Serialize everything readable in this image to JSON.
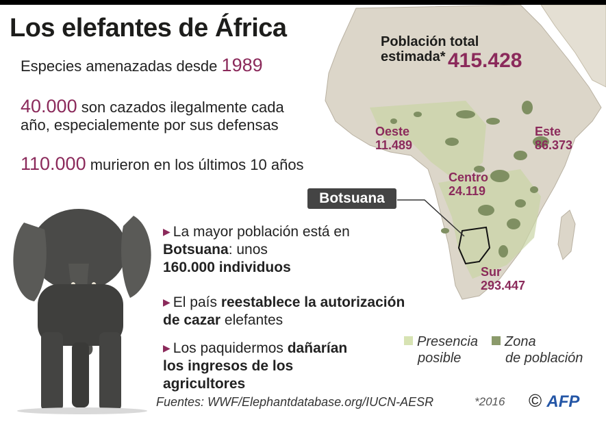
{
  "title": "Los elefantes de África",
  "stats": {
    "line1_text": "Especies amenazadas desde",
    "line1_value": "1989",
    "line2_value": "40.000",
    "line2_text_a": "son cazados ilegalmente cada",
    "line2_text_b": "año, especialemente por sus defensas",
    "line3_value": "110.000",
    "line3_text": "murieron en los últimos 10 años"
  },
  "map": {
    "total_label_a": "Población total",
    "total_label_b": "estimada*",
    "total_value": "415.428",
    "regions": [
      {
        "name": "Oeste",
        "value": "11.489"
      },
      {
        "name": "Este",
        "value": "86.373"
      },
      {
        "name": "Centro",
        "value": "24.119"
      },
      {
        "name": "Sur",
        "value": "293.447"
      }
    ],
    "callout": "Botsuana"
  },
  "bullets": [
    {
      "a": "La mayor población está en",
      "b_bold": "Botsuana",
      "c": ": unos",
      "d_bold": "160.000 individuos"
    },
    {
      "a": "El país",
      "b_bold": "reestablece la autorización",
      "c_bold": "de cazar",
      "d": "elefantes"
    },
    {
      "a": "Los paquidermos",
      "b_bold": "dañarían",
      "c_bold": "los ingresos de los",
      "d_bold": "agricultores"
    }
  ],
  "legend": {
    "possible_a": "Presencia",
    "possible_b": "posible",
    "zone_a": "Zona",
    "zone_b": "de población",
    "possible_color": "#d7e3b3",
    "zone_color": "#8b9a6b"
  },
  "footer": {
    "sources": "Fuentes: WWF/Elephantdatabase.org/IUCN-AESR",
    "year_note": "*2016",
    "copyright": "©",
    "agency": "AFP"
  },
  "colors": {
    "accent": "#8b2a5b",
    "map_land": "#dcd6c9",
    "map_forest": "#c9d4a5",
    "map_zone": "#7f8f62"
  }
}
